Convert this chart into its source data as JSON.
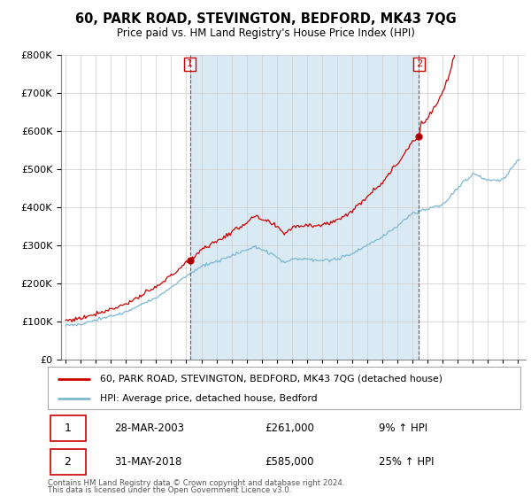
{
  "title": "60, PARK ROAD, STEVINGTON, BEDFORD, MK43 7QG",
  "subtitle": "Price paid vs. HM Land Registry's House Price Index (HPI)",
  "sale1_label": "28-MAR-2003",
  "sale1_price": 261000,
  "sale1_hpi_text": "9% ↑ HPI",
  "sale1_x": 2003.24,
  "sale2_label": "31-MAY-2018",
  "sale2_price": 585000,
  "sale2_hpi_text": "25% ↑ HPI",
  "sale2_x": 2018.42,
  "hpi_color": "#7bb8d4",
  "hpi_fill_color": "#daeaf4",
  "price_color": "#cc0000",
  "vline_color": "#cc0000",
  "legend_label_price": "60, PARK ROAD, STEVINGTON, BEDFORD, MK43 7QG (detached house)",
  "legend_label_hpi": "HPI: Average price, detached house, Bedford",
  "footer": "Contains HM Land Registry data © Crown copyright and database right 2024.\nThis data is licensed under the Open Government Licence v3.0.",
  "ylim": [
    0,
    800000
  ],
  "yticks": [
    0,
    100000,
    200000,
    300000,
    400000,
    500000,
    600000,
    700000,
    800000
  ],
  "background_color": "#ffffff",
  "grid_color": "#cccccc"
}
